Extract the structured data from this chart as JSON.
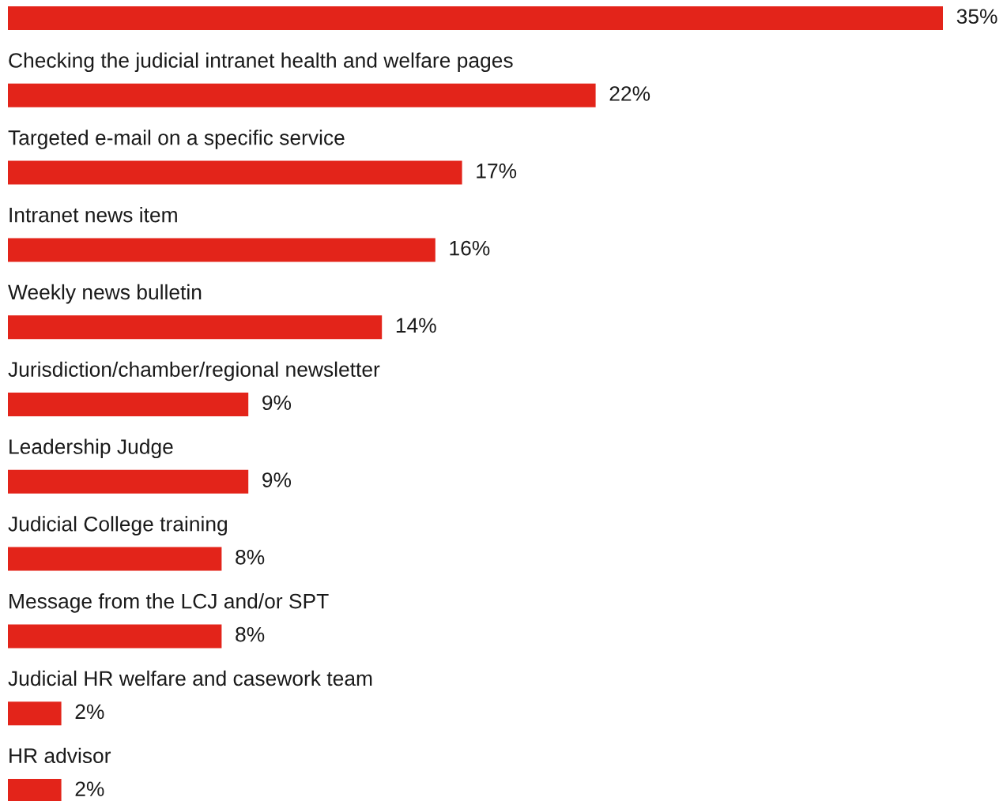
{
  "chart_data": {
    "type": "bar",
    "orientation": "horizontal",
    "categories": [
      null,
      "Checking the judicial intranet health and welfare pages",
      "Targeted e-mail on a specific service",
      "Intranet news item",
      "Weekly news bulletin",
      "Jurisdiction/chamber/regional newsletter",
      "Leadership Judge",
      "Judicial College training",
      "Message from the LCJ and/or SPT",
      "Judicial HR welfare and casework team",
      "HR advisor"
    ],
    "values": [
      35,
      22,
      17,
      16,
      14,
      9,
      9,
      8,
      8,
      2,
      2
    ],
    "value_labels": [
      "35%",
      "22%",
      "17%",
      "16%",
      "14%",
      "9%",
      "9%",
      "8%",
      "8%",
      "2%",
      "2%"
    ],
    "color": "#e3241a"
  }
}
